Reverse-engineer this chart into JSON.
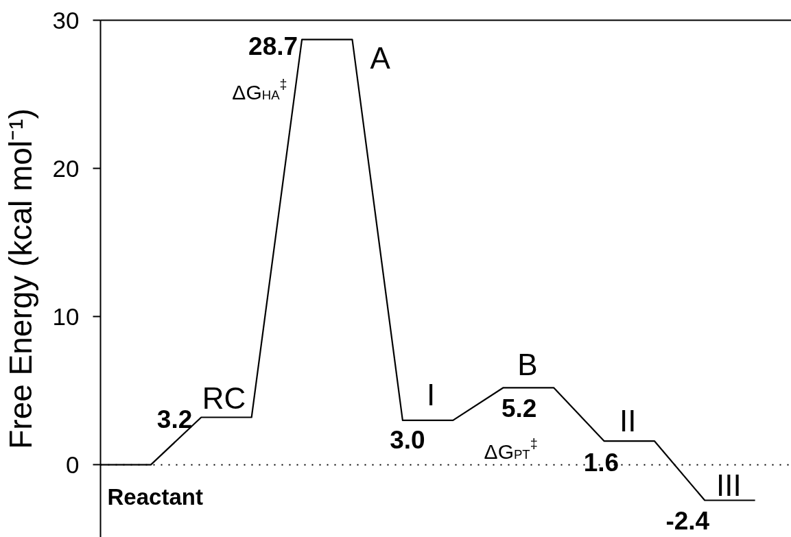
{
  "chart_data": {
    "type": "line",
    "ylabel": "Free Energy (kcal mol⁻¹)",
    "categories": [
      null,
      null,
      null,
      null,
      null,
      null,
      null,
      null,
      null,
      null,
      null,
      null,
      null,
      null
    ],
    "values": [
      0,
      0,
      3.2,
      3.2,
      28.7,
      28.7,
      3.0,
      3.0,
      5.2,
      5.2,
      1.6,
      1.6,
      -2.4,
      -2.4
    ],
    "value_labels": [
      null,
      null,
      "3.2",
      null,
      "28.7",
      null,
      "3.0",
      null,
      "5.2",
      null,
      "1.6",
      null,
      "-2.4",
      null
    ],
    "color": "#000000",
    "line_style": "solid",
    "ylim": [
      -4.9,
      30
    ],
    "yticks": [
      0,
      10,
      20,
      30
    ],
    "tick_labels": "y",
    "ref_lines": [
      {
        "axis": "y",
        "value": 0,
        "line_style": "dotted",
        "color": "#000000"
      }
    ],
    "annotations": [
      {
        "text": "Reactant",
        "y": 0
      },
      {
        "text": "RC",
        "y": 3.2
      },
      "A",
      "ΔG$_{HA}$$^{‡}$",
      {
        "text": "I",
        "y": 3.0
      },
      {
        "text": "B",
        "y": 5.2
      },
      {
        "text": "ΔG$_{PT}$$^{‡}$",
        "y": 5.2
      },
      {
        "text": "II",
        "y": 1.6
      },
      {
        "text": "III",
        "y": -2.4
      }
    ]
  }
}
